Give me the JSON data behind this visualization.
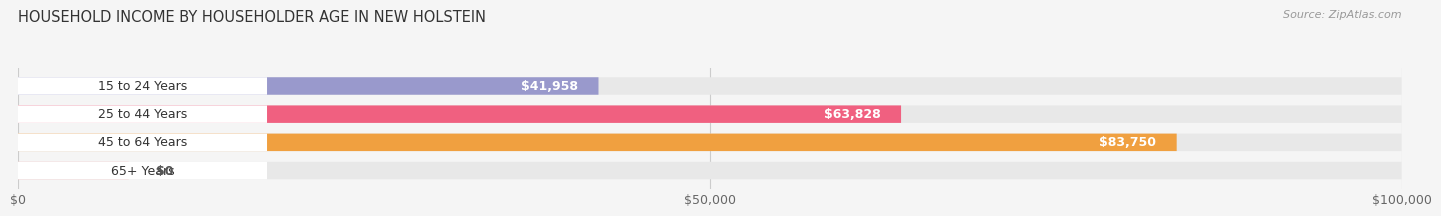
{
  "title": "HOUSEHOLD INCOME BY HOUSEHOLDER AGE IN NEW HOLSTEIN",
  "source": "Source: ZipAtlas.com",
  "categories": [
    "15 to 24 Years",
    "25 to 44 Years",
    "45 to 64 Years",
    "65+ Years"
  ],
  "values": [
    41958,
    63828,
    83750,
    0
  ],
  "bar_colors": [
    "#9999cc",
    "#f06080",
    "#f0a040",
    "#f0aaaa"
  ],
  "bar_labels": [
    "$41,958",
    "$63,828",
    "$83,750",
    "$0"
  ],
  "label_colors": [
    "#ffffff",
    "#ffffff",
    "#ffffff",
    "#555555"
  ],
  "xlim": [
    0,
    100000
  ],
  "xticks": [
    0,
    50000,
    100000
  ],
  "xtick_labels": [
    "$0",
    "$50,000",
    "$100,000"
  ],
  "label_fontsize": 9,
  "title_fontsize": 10.5,
  "background_color": "#f5f5f5",
  "bar_background_color": "#e8e8e8",
  "bar_height": 0.62,
  "rounding_size": 0.28
}
